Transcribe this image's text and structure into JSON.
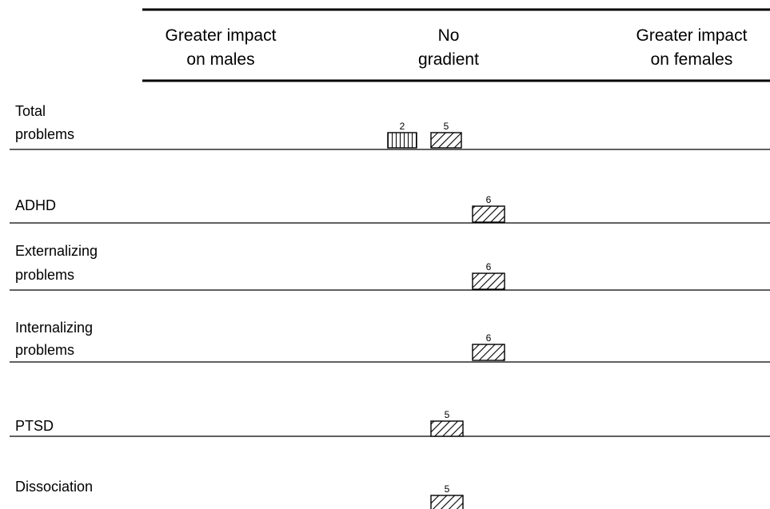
{
  "header": {
    "columns": [
      {
        "lines": [
          "Greater impact",
          "on males"
        ]
      },
      {
        "lines": [
          "No",
          "gradient"
        ]
      },
      {
        "lines": [
          "Greater impact",
          "on females"
        ]
      }
    ]
  },
  "chart_data": {
    "type": "harvest plot",
    "columns": [
      "Greater impact on males",
      "No gradient",
      "Greater impact on females"
    ],
    "rows": [
      {
        "label_lines": [
          "Total",
          "problems"
        ],
        "studies": [
          {
            "number": "2",
            "pattern": "vertical",
            "column": "No gradient"
          },
          {
            "number": "5",
            "pattern": "diagonal",
            "column": "No gradient"
          }
        ]
      },
      {
        "label_lines": [
          "ADHD"
        ],
        "studies": [
          {
            "number": "6",
            "pattern": "diagonal",
            "column": "No gradient"
          }
        ]
      },
      {
        "label_lines": [
          "Externalizing",
          "problems"
        ],
        "studies": [
          {
            "number": "6",
            "pattern": "diagonal",
            "column": "No gradient"
          }
        ]
      },
      {
        "label_lines": [
          "Internalizing",
          "problems"
        ],
        "studies": [
          {
            "number": "6",
            "pattern": "diagonal",
            "column": "No gradient"
          }
        ]
      },
      {
        "label_lines": [
          "PTSD"
        ],
        "studies": [
          {
            "number": "5",
            "pattern": "diagonal",
            "column": "No gradient"
          }
        ]
      },
      {
        "label_lines": [
          "Dissociation"
        ],
        "studies": [
          {
            "number": "5",
            "pattern": "diagonal",
            "column": "No gradient"
          }
        ]
      }
    ]
  }
}
